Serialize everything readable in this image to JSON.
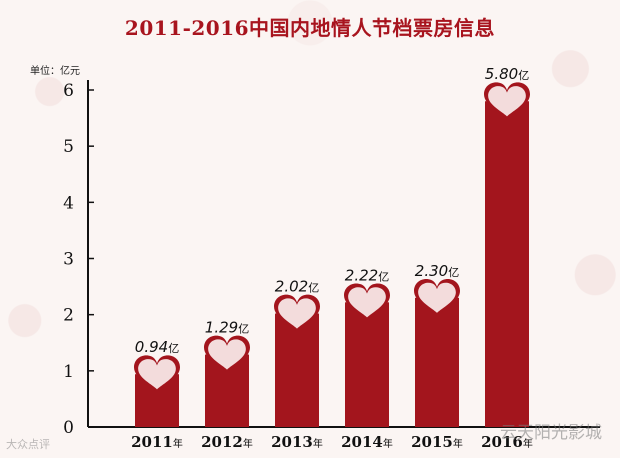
{
  "watermarks": {
    "brand": "云天阳光影城",
    "source": "大众点评"
  },
  "chart_data": {
    "type": "bar",
    "title": "2011-2016中国内地情人节档票房信息",
    "unit_label": "单位：亿元",
    "categories": [
      "2011",
      "2012",
      "2013",
      "2014",
      "2015",
      "2016"
    ],
    "category_suffix": "年",
    "values": [
      0.94,
      1.29,
      2.02,
      2.22,
      2.3,
      5.8
    ],
    "value_labels": [
      "0.94",
      "1.29",
      "2.02",
      "2.22",
      "2.30",
      "5.80"
    ],
    "value_suffix": "亿",
    "yticks": [
      "0",
      "1",
      "2",
      "3",
      "4",
      "5",
      "6"
    ],
    "ylim": [
      0,
      6
    ],
    "grid": false,
    "colors": {
      "bar": "#a3151d",
      "heart": "#f3dcdc",
      "heart_stroke": "#a3151d",
      "title": "#a8141e"
    }
  }
}
